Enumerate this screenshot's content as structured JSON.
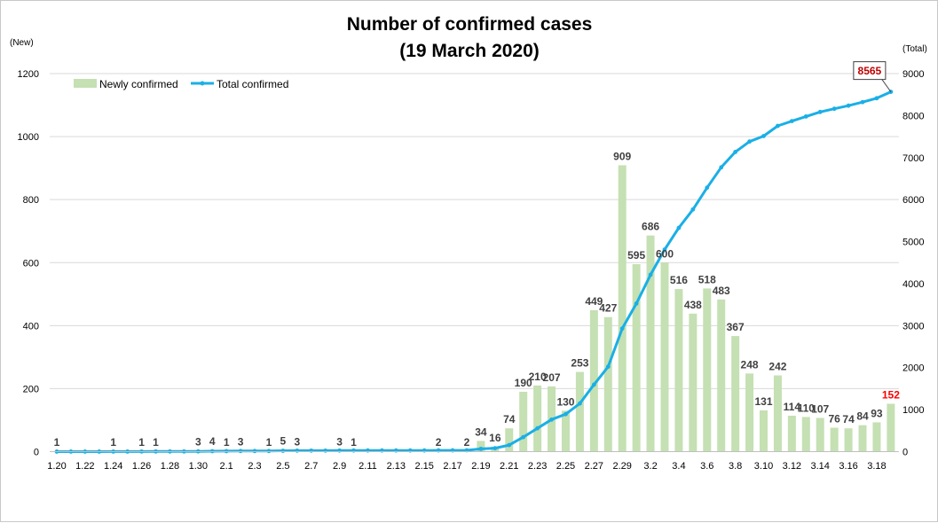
{
  "chart_data": {
    "type": "bar+line",
    "title": "Number of confirmed cases",
    "subtitle": "(19 March 2020)",
    "left_axis_label": "(New)",
    "right_axis_label": "(Total)",
    "left_ylim": [
      0,
      1200
    ],
    "left_ticks": [
      "0",
      "200",
      "400",
      "600",
      "800",
      "1000",
      "1200"
    ],
    "right_ylim": [
      0,
      9000
    ],
    "right_ticks": [
      "0",
      "1000",
      "2000",
      "3000",
      "4000",
      "5000",
      "6000",
      "7000",
      "8000",
      "9000"
    ],
    "grid": true,
    "legend_position": "top-left",
    "colors": {
      "bar": "#c5e0b3",
      "line": "#1aafe6",
      "last_bar_label": "#ff0000",
      "final_total_label": "#c00000",
      "dark_text": "#404040"
    },
    "categories": [
      "1.20",
      "1.21",
      "1.22",
      "1.23",
      "1.24",
      "1.25",
      "1.26",
      "1.27",
      "1.28",
      "1.29",
      "1.30",
      "1.31",
      "2.1",
      "2.2",
      "2.3",
      "2.4",
      "2.5",
      "2.6",
      "2.7",
      "2.8",
      "2.9",
      "2.10",
      "2.11",
      "2.12",
      "2.13",
      "2.14",
      "2.15",
      "2.16",
      "2.17",
      "2.18",
      "2.19",
      "2.20",
      "2.21",
      "2.22",
      "2.23",
      "2.24",
      "2.25",
      "2.26",
      "2.27",
      "2.28",
      "2.29",
      "3.1",
      "3.2",
      "3.3",
      "3.4",
      "3.5",
      "3.6",
      "3.7",
      "3.8",
      "3.9",
      "3.10",
      "3.11",
      "3.12",
      "3.13",
      "3.14",
      "3.15",
      "3.16",
      "3.17",
      "3.18",
      "3.19"
    ],
    "x_tick_labels": [
      "1.20",
      "1.22",
      "1.24",
      "1.26",
      "1.28",
      "1.30",
      "2.1",
      "2.3",
      "2.5",
      "2.7",
      "2.9",
      "2.11",
      "2.13",
      "2.15",
      "2.17",
      "2.19",
      "2.21",
      "2.23",
      "2.25",
      "2.27",
      "2.29",
      "3.2",
      "3.4",
      "3.6",
      "3.8",
      "3.10",
      "3.12",
      "3.14",
      "3.16",
      "3.18"
    ],
    "series": [
      {
        "name": "Newly confirmed",
        "axis": "left",
        "values": [
          1,
          0,
          0,
          0,
          1,
          0,
          1,
          1,
          0,
          0,
          3,
          4,
          1,
          3,
          0,
          1,
          5,
          3,
          0,
          0,
          3,
          1,
          0,
          0,
          0,
          0,
          0,
          2,
          0,
          2,
          34,
          16,
          74,
          190,
          210,
          207,
          130,
          253,
          449,
          427,
          909,
          595,
          686,
          600,
          516,
          438,
          518,
          483,
          367,
          248,
          131,
          242,
          114,
          110,
          107,
          76,
          74,
          84,
          93,
          152
        ],
        "labels": [
          "1",
          "",
          "",
          "",
          "1",
          "",
          "1",
          "1",
          "",
          "",
          "3",
          "4",
          "1",
          "3",
          "",
          "1",
          "5",
          "3",
          "",
          "",
          "3",
          "1",
          "",
          "",
          "",
          "",
          "",
          "2",
          "",
          "2",
          "34",
          "16",
          "74",
          "190",
          "210",
          "207",
          "130",
          "253",
          "449",
          "427",
          "909",
          "595",
          "686",
          "600",
          "516",
          "438",
          "518",
          "483",
          "367",
          "248",
          "131",
          "242",
          "114",
          "110",
          "107",
          "76",
          "74",
          "84",
          "93",
          "152"
        ]
      },
      {
        "name": "Total confirmed",
        "axis": "right",
        "values": [
          1,
          1,
          1,
          1,
          2,
          2,
          3,
          4,
          4,
          4,
          7,
          11,
          12,
          15,
          15,
          16,
          21,
          24,
          24,
          24,
          27,
          28,
          28,
          28,
          28,
          28,
          28,
          30,
          30,
          32,
          66,
          82,
          156,
          346,
          556,
          763,
          893,
          1146,
          1595,
          2022,
          2931,
          3526,
          4212,
          4812,
          5328,
          5766,
          6284,
          6767,
          7134,
          7382,
          7513,
          7755,
          7869,
          7979,
          8086,
          8162,
          8236,
          8320,
          8413,
          8565
        ],
        "final_label": "8565"
      }
    ]
  }
}
